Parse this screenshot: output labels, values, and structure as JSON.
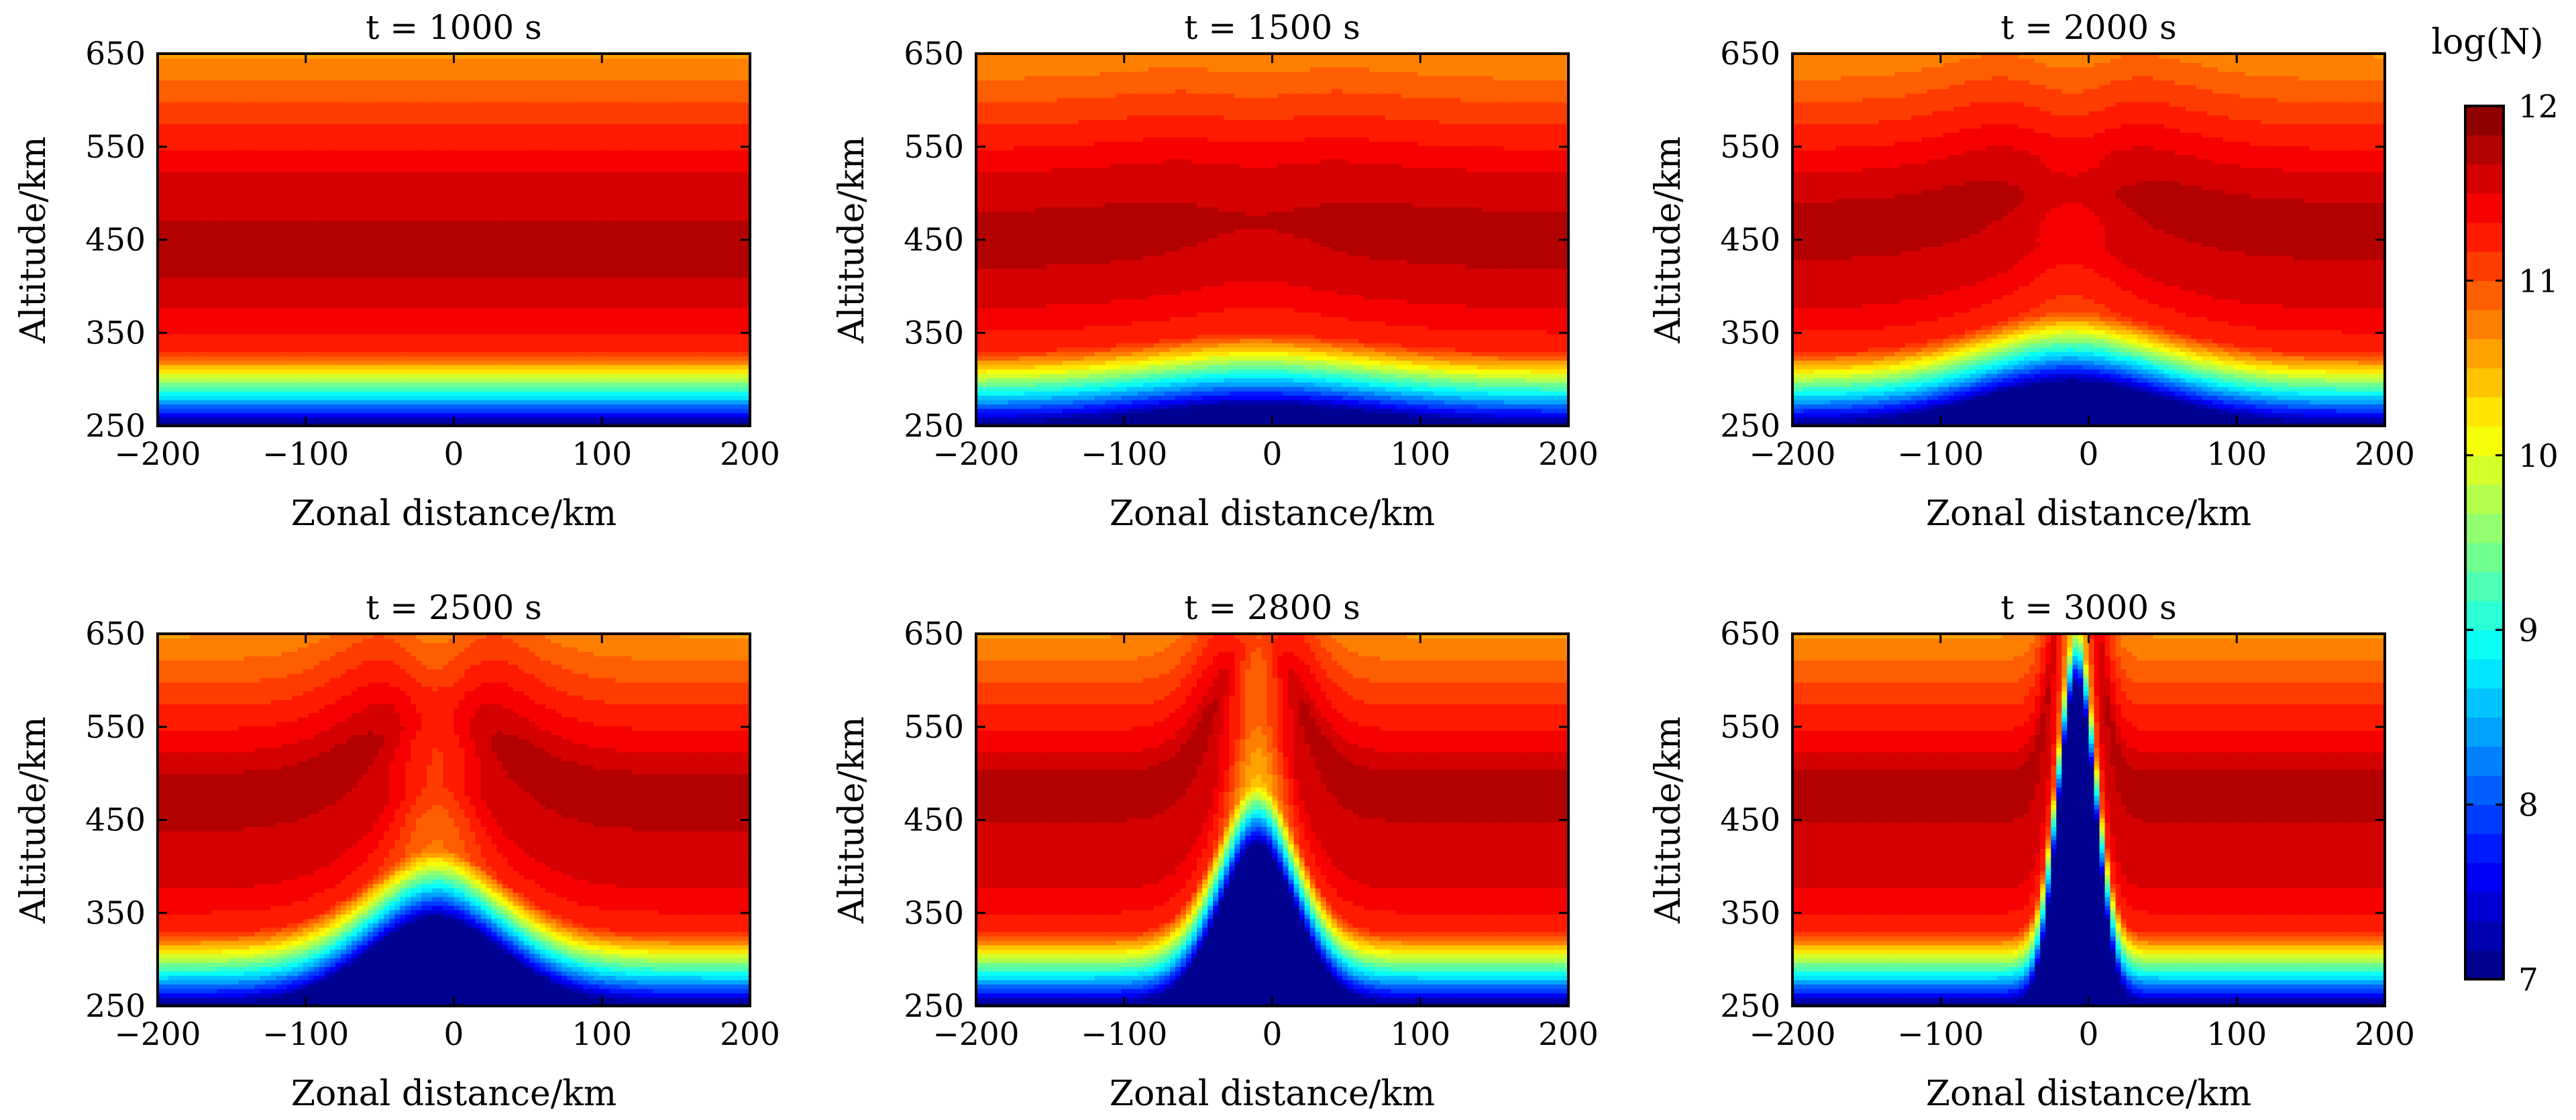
{
  "figure": {
    "colorbar": {
      "label": "log(N)",
      "min": 7,
      "max": 12,
      "ticks": [
        "7",
        "8",
        "9",
        "10",
        "11",
        "12"
      ],
      "levels": 30
    }
  },
  "chart_data": [
    {
      "type": "heatmap",
      "title": "t = 1000 s",
      "xlabel": "Zonal distance/km",
      "ylabel": "Altitude/km",
      "xlim": [
        -200,
        200
      ],
      "ylim": [
        250,
        650
      ],
      "xticks": [
        "−200",
        "−100",
        "0",
        "100",
        "200"
      ],
      "yticks": [
        "250",
        "350",
        "450",
        "550",
        "650"
      ],
      "params": {
        "center_km": 0,
        "bulge_height_km": 0,
        "bulge_width_km": 120,
        "depletion": 0,
        "peak_altitude_km": 440
      }
    },
    {
      "type": "heatmap",
      "title": "t = 1500 s",
      "xlabel": "Zonal distance/km",
      "ylabel": "Altitude/km",
      "xlim": [
        -200,
        200
      ],
      "ylim": [
        250,
        650
      ],
      "xticks": [
        "−200",
        "−100",
        "0",
        "100",
        "200"
      ],
      "yticks": [
        "250",
        "350",
        "450",
        "550",
        "650"
      ],
      "params": {
        "center_km": -10,
        "bulge_height_km": 20,
        "bulge_width_km": 100,
        "depletion": 0.1,
        "peak_altitude_km": 450
      }
    },
    {
      "type": "heatmap",
      "title": "t = 2000 s",
      "xlabel": "Zonal distance/km",
      "ylabel": "Altitude/km",
      "xlim": [
        -200,
        200
      ],
      "ylim": [
        250,
        650
      ],
      "xticks": [
        "−200",
        "−100",
        "0",
        "100",
        "200"
      ],
      "yticks": [
        "250",
        "350",
        "450",
        "550",
        "650"
      ],
      "params": {
        "center_km": -12,
        "bulge_height_km": 45,
        "bulge_width_km": 85,
        "depletion": 0.25,
        "peak_altitude_km": 460
      }
    },
    {
      "type": "heatmap",
      "title": "t = 2500 s",
      "xlabel": "Zonal distance/km",
      "ylabel": "Altitude/km",
      "xlim": [
        -200,
        200
      ],
      "ylim": [
        250,
        650
      ],
      "xticks": [
        "−200",
        "−100",
        "0",
        "100",
        "200"
      ],
      "yticks": [
        "250",
        "350",
        "450",
        "550",
        "650"
      ],
      "params": {
        "center_km": -12,
        "bulge_height_km": 90,
        "bulge_width_km": 65,
        "depletion": 0.55,
        "peak_altitude_km": 470
      }
    },
    {
      "type": "heatmap",
      "title": "t = 2800 s",
      "xlabel": "Zonal distance/km",
      "ylabel": "Altitude/km",
      "xlim": [
        -200,
        200
      ],
      "ylim": [
        250,
        650
      ],
      "xticks": [
        "−200",
        "−100",
        "0",
        "100",
        "200"
      ],
      "yticks": [
        "250",
        "350",
        "450",
        "550",
        "650"
      ],
      "params": {
        "center_km": -10,
        "bulge_height_km": 160,
        "bulge_width_km": 38,
        "depletion": 0.85,
        "peak_altitude_km": 480
      }
    },
    {
      "type": "heatmap",
      "title": "t = 3000 s",
      "xlabel": "Zonal distance/km",
      "ylabel": "Altitude/km",
      "xlim": [
        -200,
        200
      ],
      "ylim": [
        250,
        650
      ],
      "xticks": [
        "−200",
        "−100",
        "0",
        "100",
        "200"
      ],
      "yticks": [
        "250",
        "350",
        "450",
        "550",
        "650"
      ],
      "params": {
        "center_km": -8,
        "bulge_height_km": 330,
        "bulge_width_km": 18,
        "depletion": 1.0,
        "peak_altitude_km": 480
      }
    }
  ]
}
